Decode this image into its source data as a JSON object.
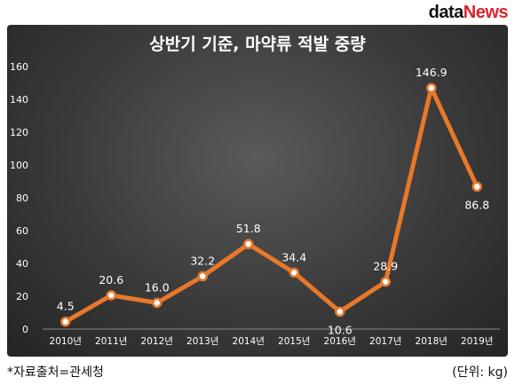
{
  "brand": {
    "part1": "data",
    "part2": "News"
  },
  "footer": {
    "source": "*자료출처=관세청",
    "unit": "(단위: kg)"
  },
  "colors": {
    "line": "#e8782a",
    "text": "#ffffff",
    "background": "#3a3a3a"
  },
  "chart_data": {
    "type": "line",
    "title": "상반기 기준, 마약류 적발 중량",
    "categories": [
      "2010년",
      "2011년",
      "2012년",
      "2013년",
      "2014년",
      "2015년",
      "2016년",
      "2017년",
      "2018년",
      "2019년"
    ],
    "series": [
      {
        "values": [
          4.5,
          20.6,
          16.0,
          32.2,
          51.8,
          34.4,
          10.6,
          28.9,
          146.9,
          86.8
        ],
        "labels": [
          "4.5",
          "20.6",
          "16.0",
          "32.2",
          "51.8",
          "34.4",
          "10.6",
          "28.9",
          "146.9",
          "86.8"
        ]
      }
    ],
    "ylim": [
      0,
      160
    ],
    "yticks": [
      "0",
      "20",
      "40",
      "60",
      "80",
      "100",
      "120",
      "140",
      "160"
    ],
    "grid": false,
    "xlabel": "",
    "ylabel": ""
  }
}
